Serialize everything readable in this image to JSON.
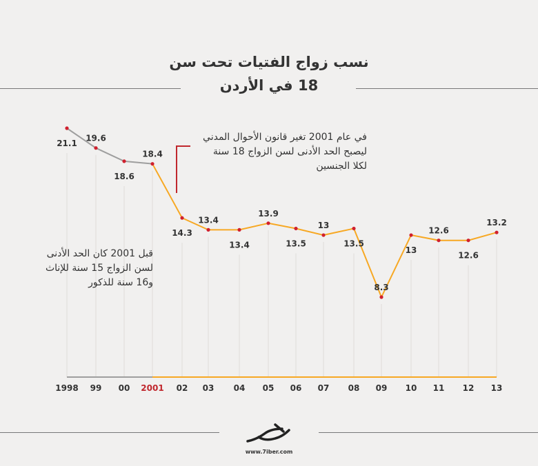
{
  "header": {
    "title_line1": "نسب زواج الفتيات تحت سن",
    "title_line2": "18 في الأردن"
  },
  "annotations": {
    "law_change": "في عام 2001 تغير قانون الأحوال المدني\nليصبح الحد الأدنى لسن الزواج 18 سنة\nلكلا الجنسين",
    "before_2001": "قبل 2001 كان الحد الأدنى\nلسن الزواج 15 سنة للإناث\nو16 سنة للذكور"
  },
  "footer": {
    "url": "www.7iber.com"
  },
  "colors": {
    "before": "#9e9e9e",
    "after": "#f7a823",
    "point": "#d0202e",
    "highlight": "#c0272d"
  },
  "chart_data": {
    "type": "line",
    "title": "نسب زواج الفتيات تحت سن 18 في الأردن",
    "categories": [
      "1998",
      "99",
      "00",
      "2001",
      "02",
      "03",
      "04",
      "05",
      "06",
      "07",
      "08",
      "09",
      "10",
      "11",
      "12",
      "13"
    ],
    "values": [
      21.1,
      19.6,
      18.6,
      18.4,
      14.3,
      13.4,
      13.4,
      13.9,
      13.5,
      13,
      13.5,
      8.3,
      13,
      12.6,
      12.6,
      13.2
    ],
    "value_labels": [
      "21.1",
      "19.6",
      "18.6",
      "18.4",
      "14.3",
      "13.4",
      "13.4",
      "13.9",
      "13.5",
      "13",
      "13.5",
      "8.3",
      "13",
      "12.6",
      "12.6",
      "13.2"
    ],
    "highlight_category": "2001",
    "xlabel": "",
    "ylabel": "",
    "grid": false,
    "legend": "none"
  }
}
